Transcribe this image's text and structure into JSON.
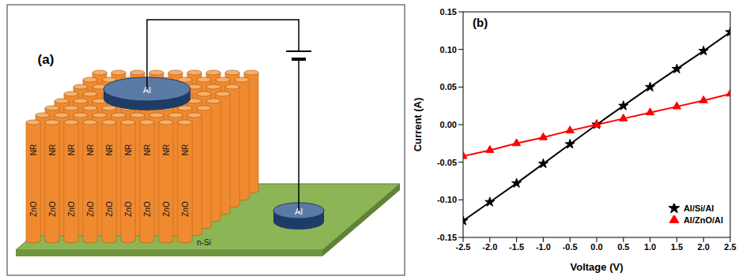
{
  "diagram": {
    "label": "(a)",
    "rod_labels": [
      "NR",
      "ZnO"
    ],
    "contact_label": "Al",
    "substrate_label": "n-Si"
  },
  "chart_data": {
    "type": "line",
    "label": "(b)",
    "x_label": "Voltage (V)",
    "y_label": "Current (A)",
    "x": [
      -2.5,
      -2,
      -1.5,
      -1,
      -0.5,
      0,
      0.5,
      1,
      1.5,
      2,
      2.5
    ],
    "series": [
      {
        "name": "Al/Si/Al",
        "color": "#000000",
        "marker": "star",
        "values": [
          -0.128,
          -0.103,
          -0.078,
          -0.052,
          -0.026,
          0,
          0.025,
          0.05,
          0.074,
          0.098,
          0.123
        ]
      },
      {
        "name": "Al/ZnO/Al",
        "color": "#ff0000",
        "marker": "triangle",
        "values": [
          -0.042,
          -0.034,
          -0.025,
          -0.017,
          -0.008,
          0,
          0.008,
          0.016,
          0.024,
          0.032,
          0.041
        ]
      }
    ],
    "xlim": [
      -2.5,
      2.5
    ],
    "xticks": [
      -2.5,
      {
        "value": -2,
        "label": "-2.0"
      },
      -1.5,
      {
        "value": -1,
        "label": "-1.0"
      },
      -0.5,
      {
        "value": 0,
        "label": "0.0"
      },
      0.5,
      {
        "value": 1,
        "label": "1.0"
      },
      1.5,
      {
        "value": 2,
        "label": "2.0"
      },
      2.5
    ],
    "ylim": [
      -0.15,
      0.15
    ],
    "yticks": [
      -0.15,
      {
        "value": -0.1,
        "label": "-0.10"
      },
      -0.05,
      {
        "value": 0,
        "label": "0.00"
      },
      0.05,
      {
        "value": 0.1,
        "label": "0.10"
      },
      0.15
    ],
    "legend": "lower right"
  }
}
